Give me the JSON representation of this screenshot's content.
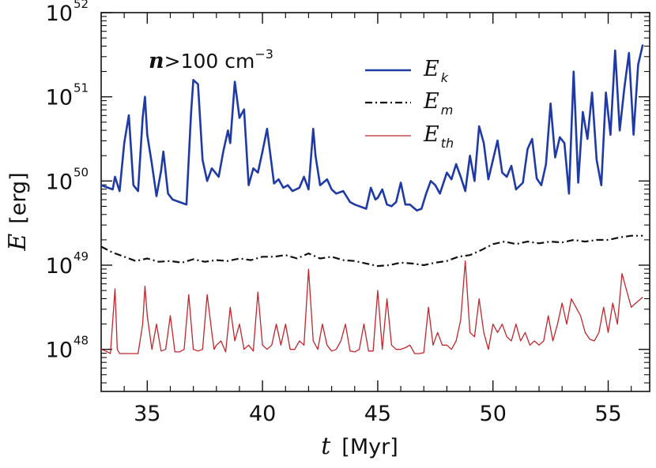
{
  "chart_data": {
    "type": "line",
    "title": "",
    "annotation": {
      "symbol": "n",
      "relation": ">100 cm",
      "exponent": "−3"
    },
    "xlabel": {
      "symbol": "t",
      "unit": "[Myr]"
    },
    "ylabel": {
      "symbol": "E",
      "unit": "[erg]"
    },
    "xlim": [
      33.0,
      56.8
    ],
    "ylim_log10": [
      47.5,
      52.0
    ],
    "yscale": "log",
    "grid": false,
    "legend_position": "top-center",
    "x_ticks": [
      35,
      40,
      45,
      50,
      55
    ],
    "x_tick_labels": [
      "35",
      "40",
      "45",
      "50",
      "55"
    ],
    "y_ticks": [
      {
        "exp": 48,
        "base": "10",
        "sup": "48"
      },
      {
        "exp": 49,
        "base": "10",
        "sup": "49"
      },
      {
        "exp": 50,
        "base": "10",
        "sup": "50"
      },
      {
        "exp": 51,
        "base": "10",
        "sup": "51"
      },
      {
        "exp": 52,
        "base": "10",
        "sup": "52"
      }
    ],
    "series": [
      {
        "name": "E_k",
        "label_main": "E",
        "label_sub": "k",
        "color": "#1f3aa6",
        "style": "solid",
        "width": 2.6,
        "x": [
          33.0,
          33.3,
          33.5,
          33.6,
          33.8,
          34.0,
          34.2,
          34.4,
          34.6,
          34.8,
          34.9,
          35.0,
          35.2,
          35.4,
          35.6,
          35.7,
          35.9,
          36.1,
          36.4,
          36.7,
          36.9,
          37.0,
          37.2,
          37.4,
          37.6,
          37.8,
          38.1,
          38.3,
          38.5,
          38.6,
          38.8,
          39.0,
          39.2,
          39.4,
          39.6,
          39.8,
          40.0,
          40.2,
          40.5,
          40.7,
          40.9,
          41.1,
          41.3,
          41.6,
          41.8,
          42.0,
          42.2,
          42.3,
          42.5,
          42.8,
          43.0,
          43.2,
          43.5,
          43.8,
          44.0,
          44.2,
          44.5,
          44.7,
          44.9,
          45.0,
          45.2,
          45.4,
          45.6,
          45.8,
          46.0,
          46.2,
          46.4,
          46.7,
          46.9,
          47.1,
          47.3,
          47.5,
          47.7,
          48.0,
          48.2,
          48.4,
          48.6,
          48.8,
          49.0,
          49.2,
          49.4,
          49.6,
          49.8,
          50.0,
          50.2,
          50.4,
          50.6,
          50.8,
          51.0,
          51.3,
          51.5,
          51.7,
          51.9,
          52.1,
          52.3,
          52.5,
          52.7,
          52.9,
          53.1,
          53.3,
          53.5,
          53.7,
          53.9,
          54.1,
          54.3,
          54.5,
          54.7,
          54.9,
          55.1,
          55.3,
          55.5,
          55.7,
          55.9,
          56.1,
          56.3,
          56.5
        ],
        "y": [
          49.95,
          49.92,
          49.9,
          50.05,
          49.88,
          50.45,
          50.78,
          49.95,
          49.88,
          50.75,
          51.0,
          50.55,
          50.2,
          49.82,
          50.12,
          50.35,
          49.85,
          49.78,
          49.75,
          49.72,
          50.8,
          51.2,
          51.15,
          50.25,
          50.0,
          50.15,
          50.05,
          50.35,
          50.6,
          50.45,
          51.18,
          50.75,
          50.85,
          49.95,
          50.15,
          50.1,
          50.35,
          50.62,
          49.97,
          50.02,
          49.92,
          49.95,
          49.88,
          49.92,
          50.05,
          49.9,
          50.62,
          50.3,
          49.95,
          50.02,
          49.9,
          49.85,
          49.88,
          49.75,
          49.72,
          49.7,
          49.67,
          49.92,
          49.78,
          49.8,
          49.9,
          49.72,
          49.7,
          49.75,
          49.98,
          49.72,
          49.72,
          49.65,
          49.67,
          49.85,
          50.0,
          49.95,
          49.85,
          50.1,
          50.02,
          50.2,
          50.05,
          49.88,
          50.3,
          50.0,
          50.65,
          50.45,
          50.02,
          50.25,
          50.48,
          50.1,
          50.05,
          50.18,
          49.9,
          49.98,
          50.38,
          50.5,
          50.03,
          49.95,
          50.2,
          50.92,
          50.28,
          50.52,
          50.45,
          49.85,
          51.3,
          49.98,
          50.82,
          50.5,
          51.05,
          50.25,
          49.95,
          51.05,
          50.55,
          51.55,
          50.6,
          51.1,
          51.52,
          50.55,
          51.38,
          51.62
        ]
      },
      {
        "name": "E_m",
        "label_main": "E",
        "label_sub": "m",
        "color": "#111111",
        "style": "dash-dot",
        "width": 2.2,
        "x": [
          33.0,
          33.5,
          34.0,
          34.5,
          35.0,
          35.5,
          36.0,
          36.5,
          37.0,
          37.5,
          38.0,
          38.5,
          39.0,
          39.5,
          40.0,
          40.5,
          41.0,
          41.5,
          42.0,
          42.5,
          43.0,
          43.5,
          44.0,
          44.5,
          45.0,
          45.5,
          46.0,
          46.5,
          47.0,
          47.5,
          48.0,
          48.5,
          49.0,
          49.5,
          50.0,
          50.5,
          51.0,
          51.5,
          52.0,
          52.5,
          53.0,
          53.5,
          54.0,
          54.5,
          55.0,
          55.5,
          56.0,
          56.5
        ],
        "y": [
          49.22,
          49.15,
          49.1,
          49.05,
          49.08,
          49.04,
          49.05,
          49.03,
          49.07,
          49.04,
          49.06,
          49.05,
          49.08,
          49.06,
          49.1,
          49.1,
          49.12,
          49.08,
          49.14,
          49.08,
          49.1,
          49.06,
          49.05,
          49.02,
          48.99,
          49.0,
          49.03,
          49.02,
          49.0,
          49.03,
          49.05,
          49.1,
          49.12,
          49.18,
          49.25,
          49.28,
          49.25,
          49.28,
          49.26,
          49.28,
          49.27,
          49.3,
          49.28,
          49.3,
          49.3,
          49.33,
          49.35,
          49.35
        ]
      },
      {
        "name": "E_th",
        "label_main": "E",
        "label_sub": "th",
        "color": "#c0262e",
        "style": "solid",
        "width": 1.3,
        "x": [
          33.0,
          33.2,
          33.4,
          33.6,
          33.7,
          33.8,
          34.0,
          34.2,
          34.4,
          34.6,
          34.8,
          34.9,
          35.0,
          35.2,
          35.4,
          35.6,
          35.8,
          36.0,
          36.2,
          36.4,
          36.6,
          36.8,
          37.0,
          37.2,
          37.4,
          37.6,
          37.8,
          37.9,
          38.0,
          38.2,
          38.4,
          38.6,
          38.8,
          39.0,
          39.2,
          39.4,
          39.6,
          39.8,
          40.0,
          40.2,
          40.4,
          40.6,
          40.8,
          41.0,
          41.2,
          41.4,
          41.6,
          41.8,
          42.0,
          42.2,
          42.4,
          42.6,
          42.8,
          43.0,
          43.2,
          43.4,
          43.6,
          43.8,
          44.0,
          44.2,
          44.4,
          44.6,
          44.8,
          45.0,
          45.2,
          45.4,
          45.6,
          45.8,
          46.0,
          46.2,
          46.4,
          46.6,
          46.8,
          47.0,
          47.2,
          47.4,
          47.6,
          47.8,
          48.0,
          48.2,
          48.4,
          48.6,
          48.8,
          49.0,
          49.2,
          49.4,
          49.6,
          49.8,
          50.0,
          50.2,
          50.4,
          50.6,
          50.8,
          51.0,
          51.2,
          51.4,
          51.6,
          51.8,
          52.0,
          52.2,
          52.4,
          52.6,
          52.8,
          53.0,
          53.2,
          53.4,
          53.6,
          53.8,
          54.0,
          54.2,
          54.4,
          54.6,
          54.8,
          55.0,
          55.2,
          55.4,
          55.6,
          55.8,
          56.0,
          56.2,
          56.5
        ],
        "y": [
          48.0,
          47.98,
          47.95,
          48.72,
          48.0,
          47.95,
          47.95,
          47.95,
          47.95,
          47.95,
          48.3,
          48.75,
          48.4,
          48.0,
          48.3,
          47.98,
          48.0,
          48.4,
          47.97,
          47.97,
          48.0,
          48.65,
          48.0,
          47.98,
          48.0,
          48.65,
          48.2,
          48.0,
          48.05,
          48.1,
          47.97,
          48.5,
          48.1,
          48.3,
          48.0,
          48.05,
          47.98,
          48.68,
          48.05,
          48.0,
          48.05,
          48.3,
          48.05,
          48.3,
          48.0,
          48.0,
          48.1,
          48.05,
          48.95,
          48.1,
          48.0,
          48.3,
          48.05,
          47.98,
          48.0,
          48.1,
          48.3,
          47.98,
          47.97,
          48.0,
          48.3,
          47.98,
          47.98,
          48.7,
          48.0,
          48.6,
          48.05,
          48.0,
          48.0,
          48.02,
          48.05,
          47.95,
          47.95,
          47.96,
          48.5,
          48.05,
          48.2,
          48.05,
          48.05,
          48.0,
          48.1,
          48.35,
          49.05,
          48.2,
          48.15,
          48.6,
          48.2,
          48.0,
          48.3,
          48.2,
          48.3,
          48.15,
          48.1,
          48.3,
          48.1,
          48.2,
          48.05,
          48.1,
          48.05,
          48.1,
          48.4,
          48.1,
          48.3,
          48.55,
          48.3,
          48.6,
          48.5,
          48.4,
          48.2,
          48.12,
          48.1,
          48.2,
          48.5,
          48.2,
          48.55,
          48.3,
          48.9,
          48.7,
          48.5,
          48.55,
          48.62
        ]
      }
    ]
  }
}
